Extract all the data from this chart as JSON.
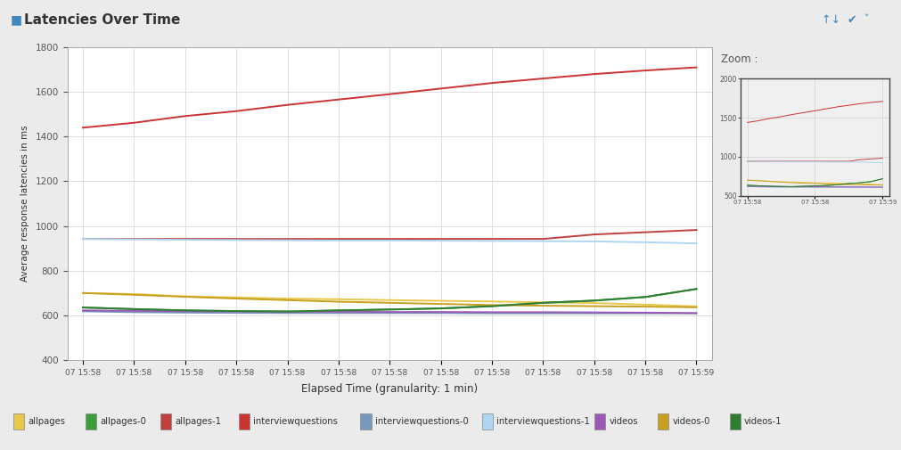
{
  "title": "Latencies Over Time",
  "xlabel": "Elapsed Time (granularity: 1 min)",
  "ylabel": "Average response latencies in ms",
  "ylim": [
    400,
    1800
  ],
  "zoom_ylim": [
    500,
    2000
  ],
  "background_color": "#ebebeb",
  "header_color": "#e8e8ec",
  "plot_bg_color": "#ffffff",
  "grid_color": "#d8d8d8",
  "x_tick_labels": [
    "07 15:58",
    "07 15:58",
    "07 15:58",
    "07 15:58",
    "07 15:58",
    "07 15:58",
    "07 15:58",
    "07 15:58",
    "07 15:58",
    "07 15:58",
    "07 15:58",
    "07 15:58",
    "07 15:59"
  ],
  "series": [
    {
      "name": "allpages",
      "color": "#e8c84a",
      "y": [
        700,
        695,
        685,
        680,
        675,
        672,
        668,
        665,
        662,
        658,
        655,
        648,
        640
      ]
    },
    {
      "name": "allpages-0",
      "color": "#3a9d3a",
      "y": [
        635,
        628,
        622,
        619,
        617,
        622,
        626,
        631,
        641,
        656,
        666,
        682,
        718
      ]
    },
    {
      "name": "allpages-1",
      "color": "#c04040",
      "y": [
        942,
        942,
        942,
        942,
        942,
        942,
        942,
        942,
        942,
        942,
        962,
        972,
        982
      ]
    },
    {
      "name": "interviewquestions",
      "color": "#cc3333",
      "y": [
        1440,
        1462,
        1492,
        1514,
        1542,
        1566,
        1590,
        1615,
        1640,
        1660,
        1680,
        1696,
        1710
      ]
    },
    {
      "name": "interviewquestions-0",
      "color": "#7799bb",
      "y": [
        618,
        614,
        612,
        611,
        610,
        610,
        610,
        610,
        609,
        609,
        609,
        609,
        609
      ]
    },
    {
      "name": "interviewquestions-1",
      "color": "#aed6f1",
      "y": [
        942,
        940,
        938,
        937,
        936,
        935,
        935,
        934,
        933,
        932,
        931,
        927,
        922
      ]
    },
    {
      "name": "videos",
      "color": "#9b59b6",
      "y": [
        622,
        620,
        618,
        617,
        616,
        616,
        615,
        615,
        614,
        614,
        613,
        612,
        610
      ]
    },
    {
      "name": "videos-0",
      "color": "#c8a020",
      "y": [
        700,
        692,
        683,
        675,
        668,
        661,
        656,
        651,
        646,
        643,
        641,
        639,
        636
      ]
    },
    {
      "name": "videos-1",
      "color": "#2e7d32",
      "y": [
        635,
        628,
        622,
        619,
        617,
        622,
        626,
        631,
        641,
        656,
        666,
        682,
        718
      ]
    }
  ],
  "legend_entries": [
    {
      "name": "allpages",
      "color": "#e8c84a"
    },
    {
      "name": "allpages-0",
      "color": "#3a9d3a"
    },
    {
      "name": "allpages-1",
      "color": "#c04040"
    },
    {
      "name": "interviewquestions",
      "color": "#cc3333"
    },
    {
      "name": "interviewquestions-0",
      "color": "#7799bb"
    },
    {
      "name": "interviewquestions-1",
      "color": "#aed6f1"
    },
    {
      "name": "videos",
      "color": "#9b59b6"
    },
    {
      "name": "videos-0",
      "color": "#c8a020"
    },
    {
      "name": "videos-1",
      "color": "#2e7d32"
    }
  ]
}
